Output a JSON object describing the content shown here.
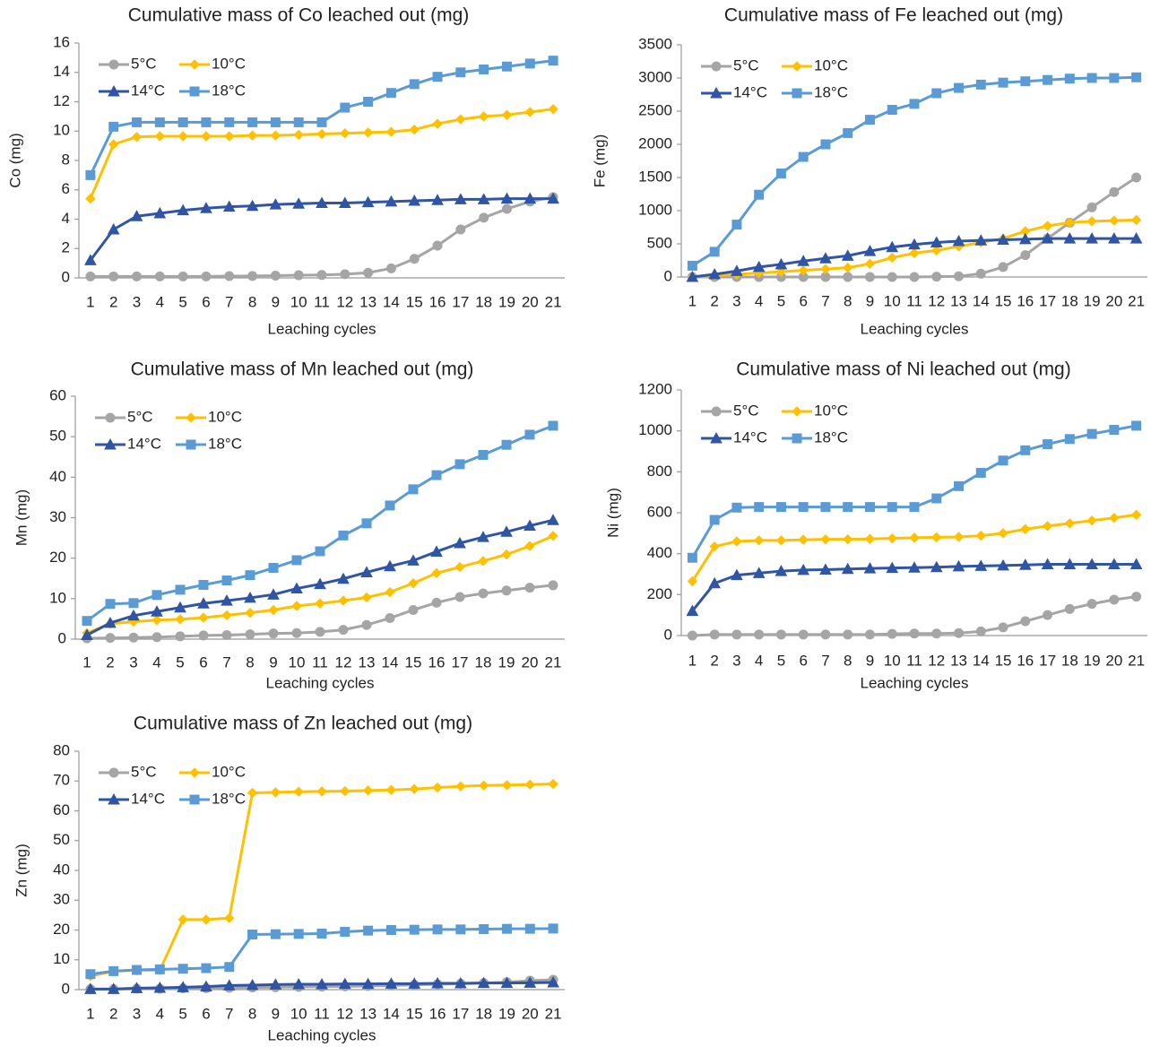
{
  "chart_data": [
    {
      "type": "line",
      "title": "Cumulative mass of Co leached out (mg)",
      "x_label": "Leaching cycles",
      "y_label": "Co (mg)",
      "legend": "upper left",
      "categories": [
        "1",
        "2",
        "3",
        "4",
        "5",
        "6",
        "7",
        "8",
        "9",
        "10",
        "11",
        "12",
        "13",
        "14",
        "15",
        "16",
        "17",
        "18",
        "19",
        "20",
        "21"
      ],
      "ylim": [
        0,
        16
      ],
      "yticks": [
        0,
        2,
        4,
        6,
        8,
        10,
        12,
        14,
        16
      ],
      "series": [
        {
          "name": "5°C",
          "color": "#a5a5a5",
          "marker": "circle",
          "values": [
            0.1,
            0.1,
            0.1,
            0.1,
            0.1,
            0.1,
            0.12,
            0.13,
            0.15,
            0.18,
            0.2,
            0.25,
            0.35,
            0.65,
            1.3,
            2.2,
            3.3,
            4.1,
            4.7,
            5.2,
            5.5
          ]
        },
        {
          "name": "10°C",
          "color": "#ffc000",
          "marker": "diamond",
          "values": [
            5.4,
            9.1,
            9.6,
            9.65,
            9.65,
            9.65,
            9.65,
            9.7,
            9.7,
            9.75,
            9.8,
            9.85,
            9.9,
            9.95,
            10.1,
            10.5,
            10.8,
            11.0,
            11.1,
            11.3,
            11.5
          ]
        },
        {
          "name": "14°C",
          "color": "#2f55a4",
          "marker": "triangle",
          "values": [
            1.2,
            3.3,
            4.2,
            4.4,
            4.6,
            4.75,
            4.85,
            4.9,
            5.0,
            5.05,
            5.1,
            5.1,
            5.15,
            5.2,
            5.25,
            5.3,
            5.35,
            5.35,
            5.4,
            5.4,
            5.4
          ]
        },
        {
          "name": "18°C",
          "color": "#5b9bd5",
          "marker": "square",
          "values": [
            7.0,
            10.3,
            10.6,
            10.6,
            10.6,
            10.6,
            10.6,
            10.6,
            10.6,
            10.6,
            10.6,
            11.6,
            12.0,
            12.6,
            13.2,
            13.7,
            14.0,
            14.2,
            14.4,
            14.6,
            14.8
          ]
        }
      ]
    },
    {
      "type": "line",
      "title": "Cumulative mass of Fe leached out (mg)",
      "x_label": "Leaching cycles",
      "y_label": "Fe (mg)",
      "legend": "upper left",
      "categories": [
        "1",
        "2",
        "3",
        "4",
        "5",
        "6",
        "7",
        "8",
        "9",
        "10",
        "11",
        "12",
        "13",
        "14",
        "15",
        "16",
        "17",
        "18",
        "19",
        "20",
        "21"
      ],
      "ylim": [
        0,
        3500
      ],
      "yticks": [
        0,
        500,
        1000,
        1500,
        2000,
        2500,
        3000,
        3500
      ],
      "series": [
        {
          "name": "5°C",
          "color": "#a5a5a5",
          "marker": "circle",
          "values": [
            0,
            0,
            0,
            0,
            0,
            0,
            0,
            0,
            0,
            0,
            0,
            5,
            10,
            50,
            150,
            330,
            580,
            820,
            1050,
            1280,
            1500
          ]
        },
        {
          "name": "10°C",
          "color": "#ffc000",
          "marker": "diamond",
          "values": [
            0,
            20,
            40,
            60,
            80,
            100,
            120,
            140,
            200,
            290,
            360,
            400,
            460,
            520,
            580,
            690,
            770,
            820,
            840,
            850,
            860
          ]
        },
        {
          "name": "14°C",
          "color": "#2f55a4",
          "marker": "triangle",
          "values": [
            0,
            40,
            90,
            150,
            190,
            240,
            280,
            320,
            390,
            450,
            490,
            520,
            540,
            550,
            560,
            570,
            580,
            580,
            580,
            580,
            580
          ]
        },
        {
          "name": "18°C",
          "color": "#5b9bd5",
          "marker": "square",
          "values": [
            170,
            380,
            790,
            1240,
            1560,
            1810,
            2000,
            2170,
            2370,
            2520,
            2610,
            2770,
            2850,
            2900,
            2930,
            2950,
            2970,
            2990,
            3000,
            3000,
            3010
          ]
        }
      ]
    },
    {
      "type": "line",
      "title": "Cumulative mass of Mn leached out (mg)",
      "x_label": "Leaching cycles",
      "y_label": "Mn (mg)",
      "legend": "upper left",
      "categories": [
        "1",
        "2",
        "3",
        "4",
        "5",
        "6",
        "7",
        "8",
        "9",
        "10",
        "11",
        "12",
        "13",
        "14",
        "15",
        "16",
        "17",
        "18",
        "19",
        "20",
        "21"
      ],
      "ylim": [
        0,
        60
      ],
      "yticks": [
        0,
        10,
        20,
        30,
        40,
        50,
        60
      ],
      "series": [
        {
          "name": "5°C",
          "color": "#a5a5a5",
          "marker": "circle",
          "values": [
            0.2,
            0.3,
            0.4,
            0.5,
            0.7,
            0.9,
            1.0,
            1.2,
            1.4,
            1.5,
            1.8,
            2.3,
            3.5,
            5.2,
            7.2,
            9.0,
            10.4,
            11.3,
            12.0,
            12.7,
            13.3
          ]
        },
        {
          "name": "10°C",
          "color": "#ffc000",
          "marker": "diamond",
          "values": [
            1.5,
            3.8,
            4.3,
            4.7,
            4.9,
            5.3,
            5.9,
            6.5,
            7.2,
            8.2,
            8.8,
            9.5,
            10.3,
            11.6,
            13.8,
            16.3,
            17.8,
            19.3,
            20.9,
            23.0,
            25.5
          ]
        },
        {
          "name": "14°C",
          "color": "#2f55a4",
          "marker": "triangle",
          "values": [
            1.0,
            4.0,
            5.8,
            6.8,
            7.8,
            8.8,
            9.5,
            10.2,
            11.0,
            12.5,
            13.6,
            14.9,
            16.5,
            18.0,
            19.4,
            21.6,
            23.7,
            25.2,
            26.5,
            28.0,
            29.4
          ]
        },
        {
          "name": "18°C",
          "color": "#5b9bd5",
          "marker": "square",
          "values": [
            4.5,
            8.7,
            8.9,
            10.9,
            12.2,
            13.4,
            14.5,
            15.8,
            17.6,
            19.5,
            21.7,
            25.6,
            28.6,
            33.0,
            37.0,
            40.5,
            43.2,
            45.5,
            48.0,
            50.5,
            52.7
          ]
        }
      ]
    },
    {
      "type": "line",
      "title": "Cumulative mass of Ni leached out (mg)",
      "x_label": "Leaching cycles",
      "y_label": "Ni (mg)",
      "legend": "upper left",
      "categories": [
        "1",
        "2",
        "3",
        "4",
        "5",
        "6",
        "7",
        "8",
        "9",
        "10",
        "11",
        "12",
        "13",
        "14",
        "15",
        "16",
        "17",
        "18",
        "19",
        "20",
        "21"
      ],
      "ylim": [
        0,
        1200
      ],
      "yticks": [
        0,
        200,
        400,
        600,
        800,
        1000,
        1200
      ],
      "series": [
        {
          "name": "5°C",
          "color": "#a5a5a5",
          "marker": "circle",
          "values": [
            0,
            5,
            5,
            5,
            5,
            5,
            5,
            5,
            5,
            8,
            10,
            10,
            12,
            20,
            40,
            70,
            100,
            130,
            155,
            175,
            190
          ]
        },
        {
          "name": "10°C",
          "color": "#ffc000",
          "marker": "diamond",
          "values": [
            265,
            435,
            460,
            465,
            465,
            468,
            470,
            470,
            472,
            475,
            478,
            480,
            482,
            488,
            500,
            520,
            535,
            548,
            562,
            575,
            590
          ]
        },
        {
          "name": "14°C",
          "color": "#2f55a4",
          "marker": "triangle",
          "values": [
            120,
            255,
            295,
            305,
            315,
            320,
            322,
            325,
            328,
            330,
            332,
            334,
            338,
            340,
            342,
            345,
            348,
            348,
            348,
            348,
            348
          ]
        },
        {
          "name": "18°C",
          "color": "#5b9bd5",
          "marker": "square",
          "values": [
            380,
            565,
            625,
            628,
            628,
            628,
            628,
            628,
            628,
            628,
            628,
            670,
            730,
            795,
            855,
            905,
            935,
            960,
            985,
            1005,
            1025
          ]
        }
      ]
    },
    {
      "type": "line",
      "title": "Cumulative mass of Zn leached out (mg)",
      "x_label": "Leaching cycles",
      "y_label": "Zn (mg)",
      "legend": "upper left",
      "categories": [
        "1",
        "2",
        "3",
        "4",
        "5",
        "6",
        "7",
        "8",
        "9",
        "10",
        "11",
        "12",
        "13",
        "14",
        "15",
        "16",
        "17",
        "18",
        "19",
        "20",
        "21"
      ],
      "ylim": [
        0,
        80
      ],
      "yticks": [
        0,
        10,
        20,
        30,
        40,
        50,
        60,
        70,
        80
      ],
      "series": [
        {
          "name": "5°C",
          "color": "#a5a5a5",
          "marker": "circle",
          "values": [
            0.2,
            0.2,
            0.3,
            0.3,
            0.4,
            0.5,
            0.6,
            0.7,
            0.8,
            0.9,
            1.0,
            1.1,
            1.2,
            1.4,
            1.6,
            1.8,
            2.0,
            2.2,
            2.5,
            3.0,
            3.3
          ]
        },
        {
          "name": "10°C",
          "color": "#ffc000",
          "marker": "diamond",
          "values": [
            4.5,
            6.2,
            6.5,
            6.5,
            23.5,
            23.5,
            24,
            66,
            66.2,
            66.4,
            66.5,
            66.6,
            66.8,
            67,
            67.3,
            67.8,
            68.2,
            68.5,
            68.6,
            68.8,
            69
          ]
        },
        {
          "name": "14°C",
          "color": "#2f55a4",
          "marker": "triangle",
          "values": [
            0.2,
            0.2,
            0.5,
            0.6,
            0.8,
            1.0,
            1.4,
            1.5,
            1.7,
            1.8,
            1.8,
            1.9,
            1.9,
            2.0,
            2.0,
            2.1,
            2.1,
            2.2,
            2.2,
            2.3,
            2.4
          ]
        },
        {
          "name": "18°C",
          "color": "#5b9bd5",
          "marker": "square",
          "values": [
            5.2,
            6.2,
            6.6,
            6.8,
            7.0,
            7.2,
            7.6,
            18.5,
            18.6,
            18.7,
            18.8,
            19.4,
            19.8,
            20.0,
            20.1,
            20.2,
            20.2,
            20.3,
            20.4,
            20.4,
            20.5
          ]
        }
      ]
    }
  ]
}
